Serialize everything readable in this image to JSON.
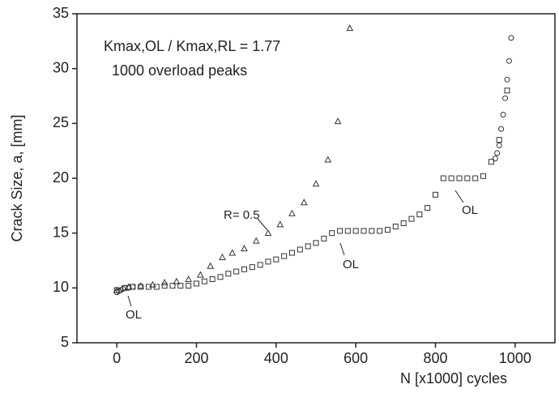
{
  "chart_data": {
    "type": "scatter",
    "xlabel": "N [x1000] cycles",
    "ylabel": "Crack Size, a, [mm]",
    "xlim": [
      -100,
      1100
    ],
    "ylim": [
      5,
      35
    ],
    "xticks": [
      0,
      200,
      400,
      600,
      800,
      1000
    ],
    "yticks": [
      5,
      10,
      15,
      20,
      25,
      30,
      35
    ],
    "grid": false,
    "annotations": [
      "Kmax,OL / Kmax,RL = 1.77",
      "1000 overload peaks",
      "R= 0.5",
      "OL",
      "OL",
      "OL"
    ],
    "series": [
      {
        "marker": "triangle",
        "color": "#333333",
        "x": [
          0,
          30,
          60,
          90,
          120,
          150,
          180,
          210,
          235,
          265,
          290,
          320,
          350,
          380,
          410,
          440,
          470,
          500,
          530,
          555,
          585
        ],
        "values": [
          9.8,
          10.1,
          10.2,
          10.3,
          10.5,
          10.6,
          10.8,
          11.2,
          12.0,
          12.8,
          13.2,
          13.6,
          14.3,
          15.0,
          15.8,
          16.8,
          17.8,
          19.5,
          21.7,
          25.2,
          33.7
        ]
      },
      {
        "marker": "square",
        "color": "#333333",
        "x": [
          0,
          20,
          40,
          60,
          80,
          100,
          120,
          140,
          160,
          180,
          200,
          220,
          240,
          260,
          280,
          300,
          320,
          340,
          360,
          380,
          400,
          420,
          440,
          460,
          480,
          500,
          520,
          540,
          560,
          580,
          600,
          620,
          640,
          660,
          680,
          700,
          720,
          740,
          760,
          780,
          800,
          820,
          840,
          860,
          880,
          900,
          920,
          940,
          960,
          980
        ],
        "values": [
          9.8,
          10.0,
          10.1,
          10.1,
          10.1,
          10.1,
          10.2,
          10.2,
          10.2,
          10.2,
          10.4,
          10.6,
          10.8,
          11.0,
          11.3,
          11.5,
          11.7,
          11.9,
          12.1,
          12.4,
          12.6,
          12.9,
          13.2,
          13.5,
          13.8,
          14.1,
          14.5,
          15.0,
          15.2,
          15.2,
          15.2,
          15.2,
          15.2,
          15.2,
          15.3,
          15.6,
          15.9,
          16.3,
          16.7,
          17.3,
          18.5,
          20.0,
          20.0,
          20.0,
          20.0,
          20.0,
          20.2,
          21.5,
          23.5,
          28.0
        ]
      },
      {
        "marker": "circle",
        "color": "#333333",
        "x": [
          0,
          5,
          10,
          15,
          20,
          30,
          40,
          950,
          955,
          960,
          965,
          970,
          975,
          980,
          985,
          990
        ],
        "values": [
          9.6,
          9.7,
          9.8,
          9.9,
          10.0,
          10.0,
          10.1,
          21.8,
          22.3,
          23.0,
          24.5,
          25.8,
          27.3,
          29.0,
          30.7,
          32.8
        ]
      }
    ]
  }
}
